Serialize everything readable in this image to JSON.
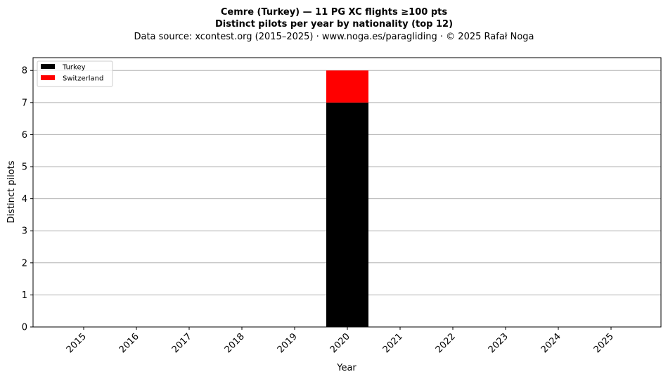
{
  "chart_data": {
    "type": "bar",
    "stacked": true,
    "title": "Cemre (Turkey)  —  11 PG XC flights ≥100 pts",
    "subtitle": "Distinct pilots per year by nationality (top 12)",
    "source": "Data source: xcontest.org (2015–2025)  ·  www.noga.es/paragliding  ·  © 2025 Rafał Noga",
    "xlabel": "Year",
    "ylabel": "Distinct pilots",
    "categories": [
      "2015",
      "2016",
      "2017",
      "2018",
      "2019",
      "2020",
      "2021",
      "2022",
      "2023",
      "2024",
      "2025"
    ],
    "series": [
      {
        "name": "Turkey",
        "color": "#000000",
        "values": [
          0,
          0,
          0,
          0,
          0,
          7,
          0,
          0,
          0,
          0,
          0
        ]
      },
      {
        "name": "Switzerland",
        "color": "#ff0000",
        "values": [
          0,
          0,
          0,
          0,
          0,
          1,
          0,
          0,
          0,
          0,
          0
        ]
      }
    ],
    "ylim": [
      0,
      8.4
    ],
    "yticks": [
      0,
      1,
      2,
      3,
      4,
      5,
      6,
      7,
      8
    ],
    "grid": "y",
    "legend_position": "top-left"
  }
}
